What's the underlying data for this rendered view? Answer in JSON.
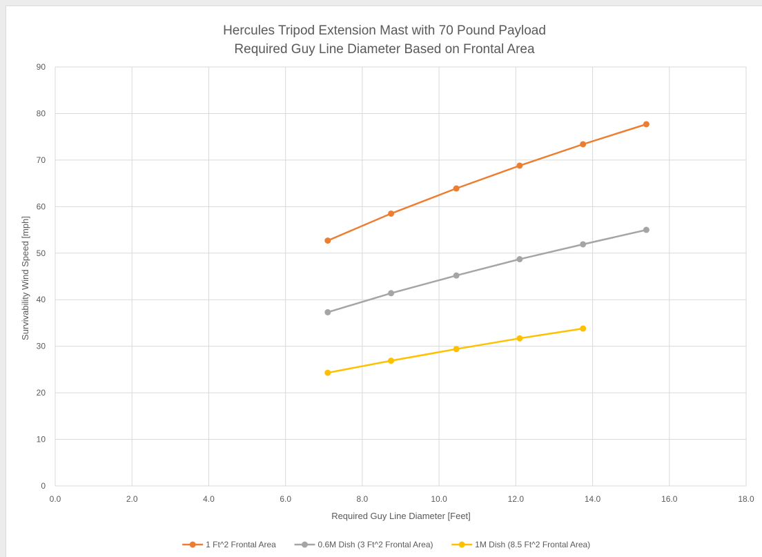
{
  "chart_data": {
    "type": "line",
    "title": "Hercules Tripod Extension Mast with 70 Pound Payload",
    "subtitle": "Required Guy Line Diameter Based on Frontal Area",
    "xlabel": "Required Guy Line Diameter [Feet]",
    "ylabel": "Survivability Wind Speed  [mph]",
    "xlim": [
      0,
      18
    ],
    "ylim": [
      0,
      90
    ],
    "x_ticks": [
      "0.0",
      "2.0",
      "4.0",
      "6.0",
      "8.0",
      "10.0",
      "12.0",
      "14.0",
      "16.0",
      "18.0"
    ],
    "y_ticks": [
      "0",
      "10",
      "20",
      "30",
      "40",
      "50",
      "60",
      "70",
      "80",
      "90"
    ],
    "grid": true,
    "legend_position": "bottom",
    "series": [
      {
        "name": "1 Ft^2 Frontal Area",
        "color": "#ed7d31",
        "points": [
          [
            7.1,
            52.7
          ],
          [
            8.75,
            58.5
          ],
          [
            10.45,
            63.9
          ],
          [
            12.1,
            68.8
          ],
          [
            13.75,
            73.4
          ],
          [
            15.4,
            77.7
          ]
        ]
      },
      {
        "name": "0.6M Dish (3 Ft^2 Frontal Area)",
        "color": "#a5a5a5",
        "points": [
          [
            7.1,
            37.3
          ],
          [
            8.75,
            41.4
          ],
          [
            10.45,
            45.2
          ],
          [
            12.1,
            48.7
          ],
          [
            13.75,
            51.9
          ],
          [
            15.4,
            55.0
          ]
        ]
      },
      {
        "name": "1M Dish (8.5 Ft^2 Frontal Area)",
        "color": "#ffc000",
        "points": [
          [
            7.1,
            24.3
          ],
          [
            8.75,
            26.9
          ],
          [
            10.45,
            29.4
          ],
          [
            12.1,
            31.7
          ],
          [
            13.75,
            33.8
          ]
        ]
      }
    ]
  }
}
